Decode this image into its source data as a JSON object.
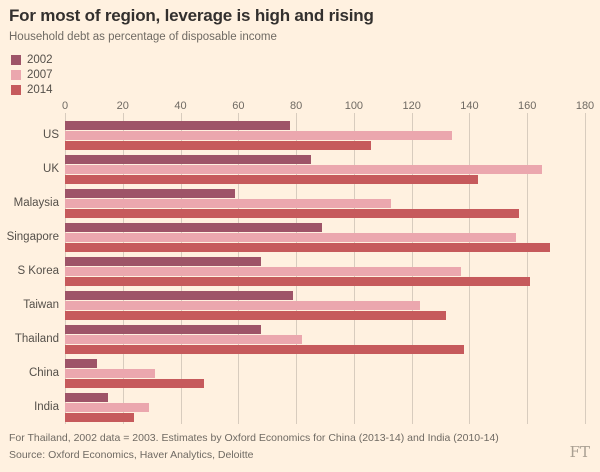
{
  "header": {
    "title": "For most of region, leverage is high and rising",
    "subtitle": "Household debt as percentage of disposable income"
  },
  "chart_data": {
    "type": "bar",
    "orientation": "horizontal",
    "title": "For most of region, leverage is high and rising",
    "subtitle": "Household debt as percentage of disposable income",
    "categories": [
      "US",
      "UK",
      "Malaysia",
      "Singapore",
      "S Korea",
      "Taiwan",
      "Thailand",
      "China",
      "India"
    ],
    "series": [
      {
        "name": "2002",
        "color": "#9e5468",
        "values": [
          78,
          85,
          59,
          89,
          68,
          79,
          68,
          11,
          15
        ]
      },
      {
        "name": "2007",
        "color": "#eba7ae",
        "values": [
          134,
          165,
          113,
          156,
          137,
          123,
          82,
          31,
          29
        ]
      },
      {
        "name": "2014",
        "color": "#c65a5c",
        "values": [
          106,
          143,
          157,
          168,
          161,
          132,
          138,
          48,
          24
        ]
      }
    ],
    "xlim": [
      0,
      180
    ],
    "xticks": [
      0,
      20,
      40,
      60,
      80,
      100,
      120,
      140,
      160,
      180
    ],
    "xlabel": "",
    "ylabel": "",
    "grid": true,
    "legend_position": "top-left"
  },
  "footer": {
    "note": "For Thailand, 2002 data = 2003. Estimates by Oxford Economics for China (2013-14) and India (2010-14)",
    "source": "Source: Oxford Economics, Haver Analytics, Deloitte",
    "logo": "FT"
  },
  "colors": {
    "background": "#fff1e0",
    "gridline": "#d8ccbe",
    "text": "#33302e",
    "muted_text": "#6f6a63"
  }
}
